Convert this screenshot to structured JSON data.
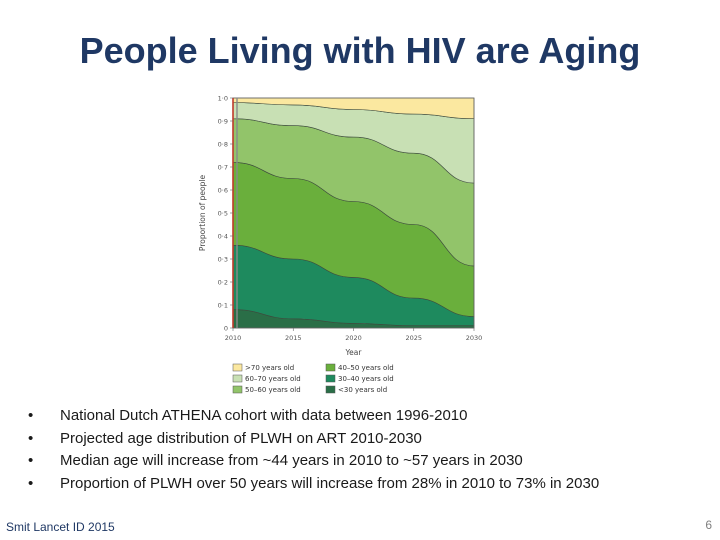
{
  "slide": {
    "title": "People Living with HIV are Aging",
    "bullets": [
      "National Dutch ATHENA cohort with data between 1996-2010",
      "Projected age distribution of PLWH on ART 2010-2030",
      "Median age will increase from ~44 years in 2010 to ~57 years in 2030",
      "Proportion of PLWH over 50 years will increase from 28% in 2010 to 73% in 2030"
    ],
    "bullet_symbol": "•",
    "source": "Smit Lancet ID 2015",
    "page_number": "6"
  },
  "chart_data": {
    "type": "area",
    "stacked": true,
    "x": [
      2010,
      2015,
      2020,
      2025,
      2030
    ],
    "x_tick_labels": [
      "2010",
      "2015",
      "2020",
      "2025",
      "2030"
    ],
    "xlabel": "Year",
    "ylabel": "Proportion of people",
    "ylim": [
      0,
      1.0
    ],
    "y_ticks": [
      0,
      0.1,
      0.2,
      0.3,
      0.4,
      0.5,
      0.6,
      0.7,
      0.8,
      0.9,
      1.0
    ],
    "y_tick_labels": [
      "0",
      "0·1",
      "0·2",
      "0·3",
      "0·4",
      "0·5",
      "0·6",
      "0·7",
      "0·8",
      "0·9",
      "1·0"
    ],
    "grid": false,
    "legend_position": "bottom",
    "series": [
      {
        "name": "<30 years old",
        "color": "#2a6e47",
        "values": [
          0.08,
          0.04,
          0.02,
          0.01,
          0.01
        ]
      },
      {
        "name": "30–40 years old",
        "color": "#1e8a5e",
        "values": [
          0.28,
          0.26,
          0.2,
          0.12,
          0.04
        ]
      },
      {
        "name": "40–50 years old",
        "color": "#6aaf3c",
        "values": [
          0.36,
          0.35,
          0.33,
          0.32,
          0.22
        ]
      },
      {
        "name": "50–60 years old",
        "color": "#92c46a",
        "values": [
          0.19,
          0.23,
          0.28,
          0.31,
          0.36
        ]
      },
      {
        "name": "60–70 years old",
        "color": "#c8e0b4",
        "values": [
          0.07,
          0.09,
          0.12,
          0.17,
          0.28
        ]
      },
      {
        "name": ">70 years old",
        "color": "#fbe8a0",
        "values": [
          0.02,
          0.03,
          0.05,
          0.07,
          0.09
        ]
      }
    ],
    "legend_order": [
      ">70 years old",
      "40–50 years old",
      "60–70 years old",
      "30–40 years old",
      "50–60 years old",
      "<30 years old"
    ]
  }
}
